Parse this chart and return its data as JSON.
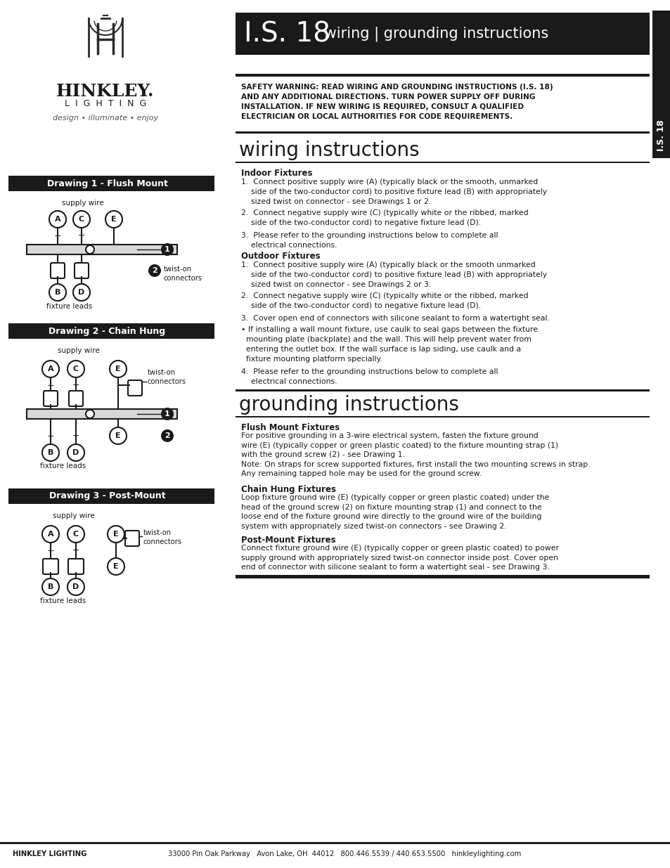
{
  "page_bg": "#ffffff",
  "header_bg": "#1a1a1a",
  "header_text_color": "#ffffff",
  "body_text_color": "#1a1a1a",
  "title_is18": "I.S. 18",
  "title_subtitle": " wiring | grounding instructions",
  "sidebar_text": "I.S. 18",
  "safety_warning": "SAFETY WARNING: READ WIRING AND GROUNDING INSTRUCTIONS (I.S. 18)\nAND ANY ADDITIONAL DIRECTIONS. TURN POWER SUPPLY OFF DURING\nINSTALLATION. IF NEW WIRING IS REQUIRED, CONSULT A QUALIFIED\nELECTRICIAN OR LOCAL AUTHORITIES FOR CODE REQUIREMENTS.",
  "wiring_title": "wiring instructions",
  "wiring_indoor_header": "Indoor Fixtures",
  "wiring_indoor_1": "1.  Connect positive supply wire (A) (typically black or the smooth, unmarked\n    side of the two-conductor cord) to positive fixture lead (B) with appropriately\n    sized twist on connector - see Drawings 1 or 2.",
  "wiring_indoor_2": "2.  Connect negative supply wire (C) (typically white or the ribbed, marked\n    side of the two-conductor cord) to negative fixture lead (D).",
  "wiring_indoor_3": "3.  Please refer to the grounding instructions below to complete all\n    electrical connections.",
  "wiring_outdoor_header": "Outdoor Fixtures",
  "wiring_outdoor_1": "1.  Connect positive supply wire (A) (typically black or the smooth unmarked\n    side of the two-conductor cord) to positive fixture lead (B) with appropriately\n    sized twist on connector - see Drawings 2 or 3.",
  "wiring_outdoor_2": "2.  Connect negative supply wire (C) (typically white or the ribbed, marked\n    side of the two-conductor cord) to negative fixture lead (D).",
  "wiring_outdoor_3": "3.  Cover open end of connectors with silicone sealant to form a watertight seal.",
  "wiring_outdoor_bullet": "• If installing a wall mount fixture, use caulk to seal gaps between the fixture\n  mounting plate (backplate) and the wall. This will help prevent water from\n  entering the outlet box. If the wall surface is lap siding, use caulk and a\n  fixture mounting platform specially.",
  "wiring_outdoor_4": "4.  Please refer to the grounding instructions below to complete all\n    electrical connections.",
  "grounding_title": "grounding instructions",
  "grounding_flush_header": "Flush Mount Fixtures",
  "grounding_flush_text": "For positive grounding in a 3-wire electrical system, fasten the fixture ground\nwire (E) (typically copper or green plastic coated) to the fixture mounting strap (1)\nwith the ground screw (2) - see Drawing 1.\nNote: On straps for screw supported fixtures, first install the two mounting screws in strap.\nAny remaining tapped hole may be used for the ground screw.",
  "grounding_chain_header": "Chain Hung Fixtures",
  "grounding_chain_text": "Loop fixture ground wire (E) (typically copper or green plastic coated) under the\nhead of the ground screw (2) on fixture mounting strap (1) and connect to the\nloose end of the fixture ground wire directly to the ground wire of the building\nsystem with appropriately sized twist-on connectors - see Drawing 2.",
  "grounding_post_header": "Post-Mount Fixtures",
  "grounding_post_text": "Connect fixture ground wire (E) (typically copper or green plastic coated) to power\nsupply ground with appropriately sized twist-on connector inside post. Cover open\nend of connector with silicone sealant to form a watertight seal - see Drawing 3.",
  "drawing1_header": "Drawing 1 - Flush Mount",
  "drawing2_header": "Drawing 2 - Chain Hung",
  "drawing3_header": "Drawing 3 - Post-Mount",
  "footer_company": "HINKLEY LIGHTING",
  "footer_address": "33000 Pin Oak Parkway   Avon Lake, OH  44012   800.446.5539 / 440.653.5500   hinkleylighting.com"
}
